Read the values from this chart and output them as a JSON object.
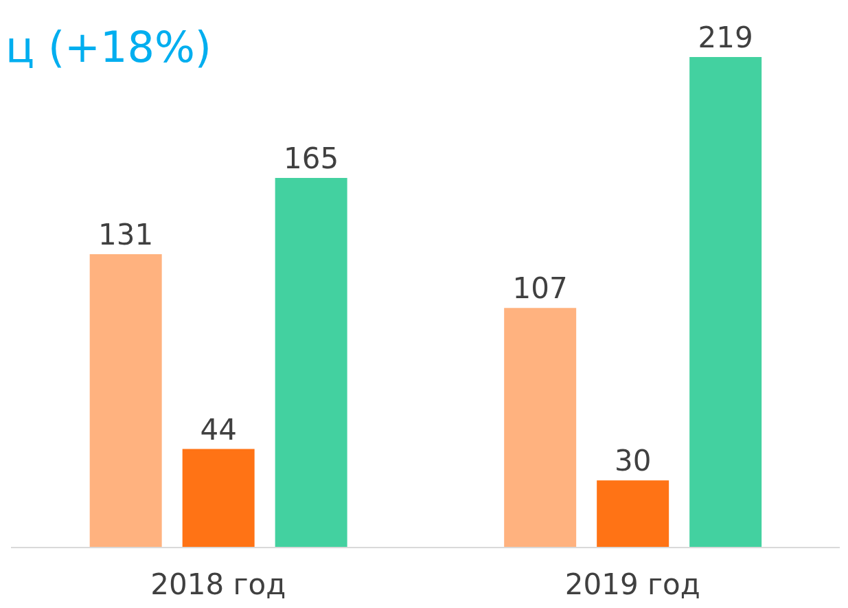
{
  "chart_data": {
    "type": "bar",
    "title": "ц (+18%)",
    "categories": [
      "2018 год",
      "2019 год"
    ],
    "series": [
      {
        "color": "#ffb27f",
        "values": [
          131,
          107
        ]
      },
      {
        "color": "#ff7315",
        "values": [
          44,
          30
        ]
      },
      {
        "color": "#43d1a0",
        "values": [
          165,
          219
        ]
      }
    ],
    "data_labels": true,
    "grid": false,
    "legend": false
  }
}
